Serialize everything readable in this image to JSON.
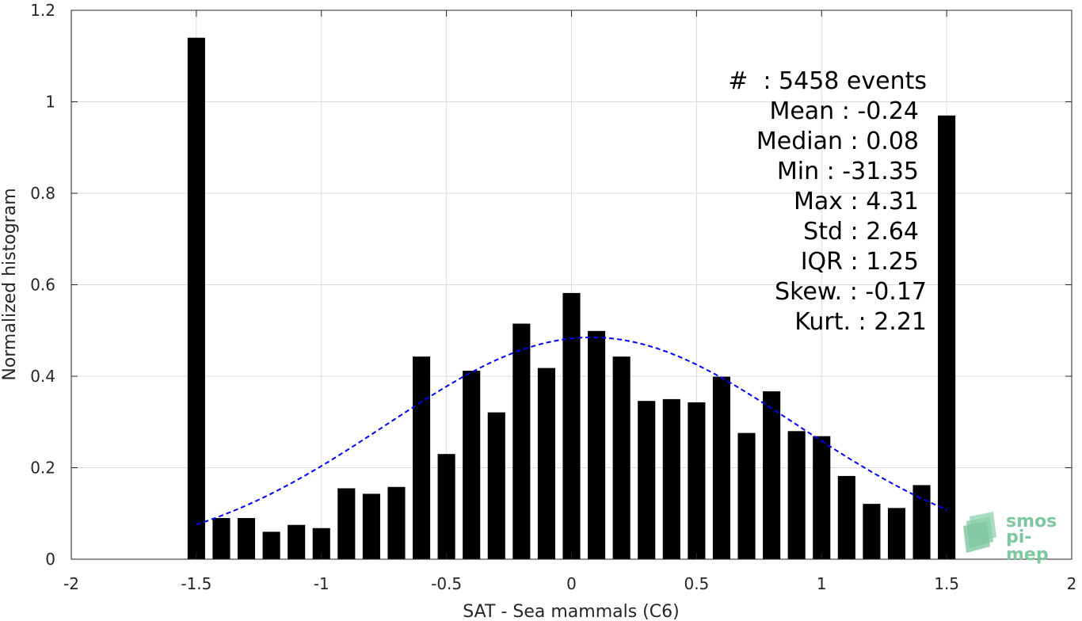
{
  "chart_data": {
    "type": "bar",
    "xlabel": "SAT - Sea mammals (C6)",
    "ylabel": "Normalized histogram",
    "xlim": [
      -2,
      2
    ],
    "ylim": [
      0,
      1.2
    ],
    "xticks": [
      -2,
      -1.5,
      -1,
      -0.5,
      0,
      0.5,
      1,
      1.5,
      2
    ],
    "xtick_labels": [
      "-2",
      "-1.5",
      "-1",
      "-0.5",
      "0",
      "0.5",
      "1",
      "1.5",
      "2"
    ],
    "yticks": [
      0,
      0.2,
      0.4,
      0.6,
      0.8,
      1,
      1.2
    ],
    "ytick_labels": [
      "0",
      "0.2",
      "0.4",
      "0.6",
      "0.8",
      "1",
      "1.2"
    ],
    "grid": true,
    "bar_color": "#000000",
    "bar_width": 0.07,
    "bars": {
      "x": [
        -1.5,
        -1.4,
        -1.3,
        -1.2,
        -1.1,
        -1.0,
        -0.9,
        -0.8,
        -0.7,
        -0.6,
        -0.5,
        -0.4,
        -0.3,
        -0.2,
        -0.1,
        0.0,
        0.1,
        0.2,
        0.3,
        0.4,
        0.5,
        0.6,
        0.7,
        0.8,
        0.9,
        1.0,
        1.1,
        1.2,
        1.3,
        1.4,
        1.5
      ],
      "values": [
        1.14,
        0.09,
        0.09,
        0.06,
        0.075,
        0.068,
        0.155,
        0.143,
        0.158,
        0.443,
        0.23,
        0.412,
        0.321,
        0.515,
        0.418,
        0.582,
        0.499,
        0.443,
        0.346,
        0.35,
        0.343,
        0.399,
        0.276,
        0.367,
        0.28,
        0.269,
        0.182,
        0.121,
        0.112,
        0.162,
        0.97
      ]
    },
    "fit_curve": {
      "type": "normal",
      "style": "dashed",
      "color": "#0000ff",
      "mean": 0.08,
      "std": 0.82,
      "xrange": [
        -1.5,
        1.5
      ],
      "peak": 0.485
    },
    "annotations": [
      "#  : 5458 events",
      "Mean : -0.24",
      "Median : 0.08",
      "Min : -31.35",
      "Max : 4.31",
      "Std : 2.64",
      "IQR : 1.25",
      "Skew. : -0.17",
      "Kurt. : 2.21"
    ]
  },
  "logo": {
    "line1": "smos",
    "line2": "pi-mep",
    "color": "#7fc7a0"
  }
}
